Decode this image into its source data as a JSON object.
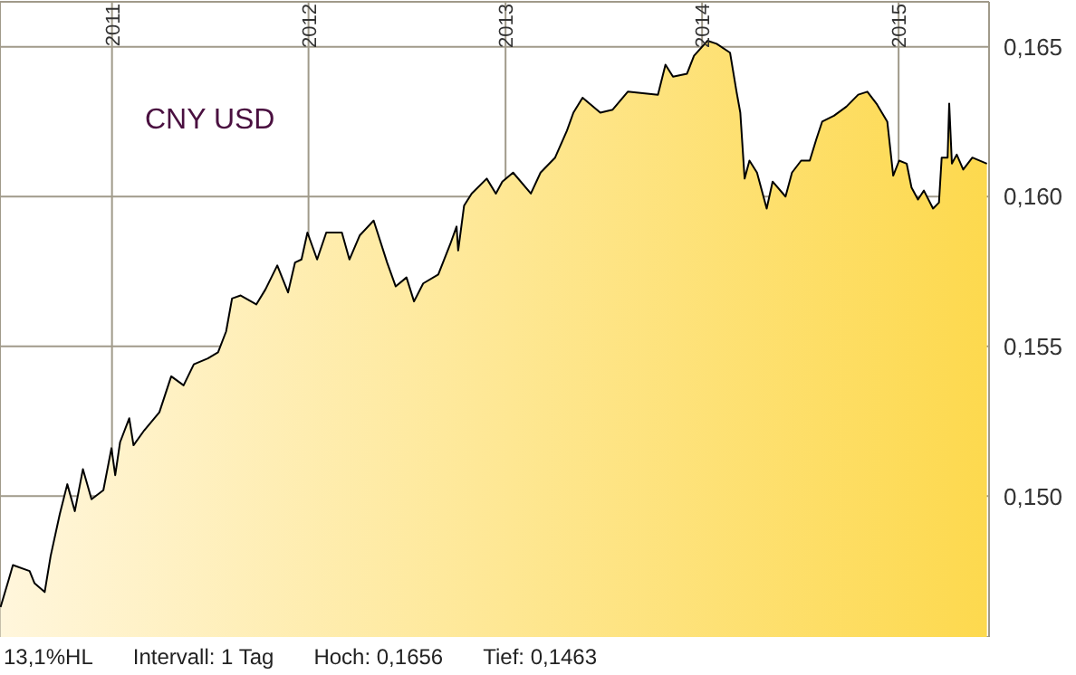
{
  "chart_data": {
    "type": "area",
    "title": "CNY USD",
    "x": [
      "2010-06-08",
      "2010-06-23",
      "2010-07-01",
      "2010-08-01",
      "2010-08-10",
      "2010-08-29",
      "2010-09-09",
      "2010-09-26",
      "2010-10-10",
      "2010-10-24",
      "2010-11-08",
      "2010-11-24",
      "2010-12-16",
      "2010-12-31",
      "2011-01-07",
      "2011-01-16",
      "2011-02-02",
      "2011-02-10",
      "2011-03-02",
      "2011-03-30",
      "2011-04-21",
      "2011-05-14",
      "2011-06-02",
      "2011-06-28",
      "2011-07-17",
      "2011-08-01",
      "2011-08-12",
      "2011-08-28",
      "2011-09-26",
      "2011-10-13",
      "2011-11-04",
      "2011-11-24",
      "2011-12-07",
      "2011-12-19",
      "2011-12-30",
      "2012-01-17",
      "2012-02-03",
      "2012-03-03",
      "2012-03-17",
      "2012-04-05",
      "2012-05-01",
      "2012-05-26",
      "2012-06-11",
      "2012-07-01",
      "2012-07-15",
      "2012-08-01",
      "2012-08-29",
      "2012-09-20",
      "2012-10-02",
      "2012-10-05",
      "2012-10-16",
      "2012-10-30",
      "2012-11-27",
      "2012-12-14",
      "2012-12-26",
      "2013-01-15",
      "2013-02-17",
      "2013-03-07",
      "2013-04-03",
      "2013-04-25",
      "2013-05-07",
      "2013-05-24",
      "2013-06-26",
      "2013-07-19",
      "2013-08-16",
      "2013-10-11",
      "2013-10-25",
      "2013-11-08",
      "2013-12-04",
      "2013-12-17",
      "2014-01-11",
      "2014-01-28",
      "2014-02-22",
      "2014-03-06",
      "2014-03-13",
      "2014-03-21",
      "2014-03-30",
      "2014-04-13",
      "2014-05-01",
      "2014-05-12",
      "2014-06-05",
      "2014-06-17",
      "2014-07-04",
      "2014-07-20",
      "2014-08-01",
      "2014-08-12",
      "2014-09-03",
      "2014-09-26",
      "2014-10-18",
      "2014-11-04",
      "2014-11-21",
      "2014-12-11",
      "2014-12-22",
      "2015-01-02",
      "2015-01-16",
      "2015-01-25",
      "2015-02-06",
      "2015-02-17",
      "2015-03-06",
      "2015-03-17",
      "2015-03-22",
      "2015-04-02",
      "2015-04-05",
      "2015-04-10",
      "2015-04-19",
      "2015-05-01",
      "2015-05-18",
      "2015-06-14"
    ],
    "series": [
      {
        "color": "#000000",
        "values": [
          0.1463,
          0.1472,
          0.1477,
          0.1475,
          0.1471,
          0.1468,
          0.148,
          0.1494,
          0.1504,
          0.1495,
          0.1509,
          0.1499,
          0.1502,
          0.1516,
          0.1507,
          0.1518,
          0.1526,
          0.1517,
          0.1522,
          0.1528,
          0.154,
          0.1537,
          0.1544,
          0.1546,
          0.1548,
          0.1555,
          0.1566,
          0.1567,
          0.1564,
          0.1569,
          0.1577,
          0.1568,
          0.1578,
          0.1579,
          0.1588,
          0.1579,
          0.1588,
          0.1588,
          0.1579,
          0.1587,
          0.1592,
          0.1578,
          0.157,
          0.1573,
          0.1565,
          0.1571,
          0.1574,
          0.1584,
          0.159,
          0.1582,
          0.1597,
          0.1601,
          0.1606,
          0.1601,
          0.1605,
          0.1608,
          0.1601,
          0.1608,
          0.1613,
          0.1622,
          0.1628,
          0.1633,
          0.1628,
          0.1629,
          0.1635,
          0.1634,
          0.1644,
          0.164,
          0.1641,
          0.1647,
          0.1652,
          0.1651,
          0.1648,
          0.1635,
          0.1628,
          0.1606,
          0.1612,
          0.1608,
          0.1596,
          0.1605,
          0.16,
          0.1608,
          0.1612,
          0.1612,
          0.1619,
          0.1625,
          0.1627,
          0.163,
          0.1634,
          0.1635,
          0.1631,
          0.1625,
          0.1607,
          0.1612,
          0.1611,
          0.1603,
          0.1599,
          0.1602,
          0.1596,
          0.1598,
          0.1613,
          0.1613,
          0.1631,
          0.1611,
          0.1614,
          0.1609,
          0.1613,
          0.1611
        ]
      }
    ],
    "xlim": [
      "2010-06-07",
      "2015-06-18"
    ],
    "xticks": [
      "2011",
      "2012",
      "2013",
      "2014",
      "2015"
    ],
    "ylim": [
      0.1453,
      0.1665
    ],
    "yticks": [
      {
        "value": 0.15,
        "label": "0,150"
      },
      {
        "value": 0.155,
        "label": "0,155"
      },
      {
        "value": 0.16,
        "label": "0,160"
      },
      {
        "value": 0.165,
        "label": "0,165"
      }
    ],
    "grid": true,
    "annotations": [
      "13,1%HL",
      "Intervall: 1 Tag",
      "Hoch: 0,1656",
      "Tief: 0,1463"
    ]
  }
}
